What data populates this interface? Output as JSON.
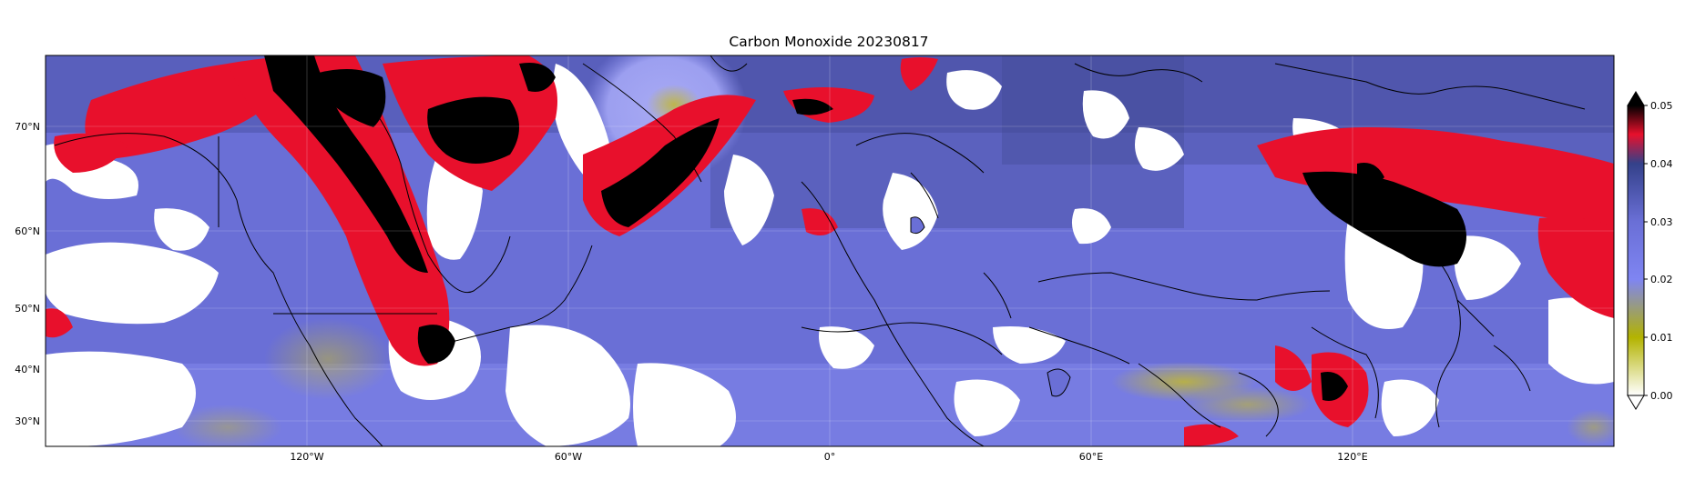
{
  "title": "Carbon Monoxide 20230817",
  "map": {
    "projection": "lat/lon",
    "lon_range": [
      -180,
      180
    ],
    "lat_range": [
      26,
      80
    ],
    "gridlines": true
  },
  "axes": {
    "lon_ticks": [
      "120°W",
      "60°W",
      "0°",
      "60°E",
      "120°E"
    ],
    "lat_ticks": [
      "70°N",
      "60°N",
      "50°N",
      "40°N",
      "30°N"
    ]
  },
  "colorbar": {
    "min": 0.0,
    "max": 0.05,
    "ticks": [
      "0.00",
      "0.01",
      "0.02",
      "0.03",
      "0.04",
      "0.05"
    ],
    "extend": "both",
    "stops": [
      "#ffffff",
      "#b3b300",
      "#7777ee",
      "#3a4490",
      "#ee1133",
      "#000000"
    ]
  },
  "colors": {
    "no_data": "#ffffff",
    "background_field": "#6a6fd6",
    "high_plume": "#e8102c",
    "extreme_plume": "#000000",
    "low_band": "#b8b020"
  }
}
